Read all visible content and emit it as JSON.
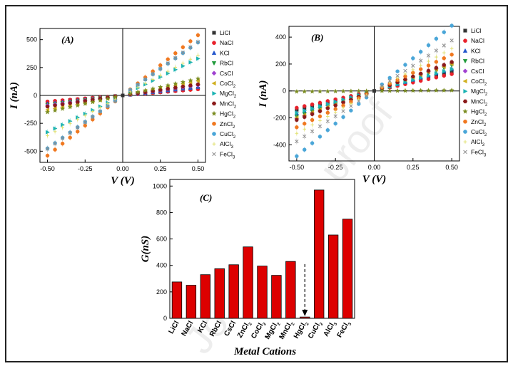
{
  "watermark": "Journal Pre-proof",
  "chart_data": [
    {
      "type": "scatter",
      "panel_label": "(A)",
      "xlabel": "V (V)",
      "ylabel": "I (nA)",
      "xlim": [
        -0.55,
        0.55
      ],
      "ylim": [
        -600,
        600
      ],
      "xticks": [
        "-0.50",
        "-0.25",
        "0.00",
        "0.25",
        "0.50"
      ],
      "xtick_values": [
        -0.5,
        -0.25,
        0,
        0.25,
        0.5
      ],
      "yticks": [
        "-500",
        "-250",
        "0",
        "250",
        "500"
      ],
      "ytick_values": [
        -500,
        -250,
        0,
        250,
        500
      ],
      "x_points": [
        -0.5,
        -0.45,
        -0.4,
        -0.35,
        -0.3,
        -0.25,
        -0.2,
        -0.15,
        -0.1,
        -0.05,
        0,
        0.05,
        0.1,
        0.15,
        0.2,
        0.25,
        0.3,
        0.35,
        0.4,
        0.45,
        0.5
      ],
      "legend_position": "right",
      "series": [
        {
          "name": "LiCl",
          "sub": "",
          "slope": 120,
          "color": "#333333",
          "marker": "square"
        },
        {
          "name": "NaCl",
          "sub": "",
          "slope": 110,
          "color": "#e8212b",
          "marker": "circle"
        },
        {
          "name": "KCl",
          "sub": "",
          "slope": 150,
          "color": "#2255cc",
          "marker": "triangle-up"
        },
        {
          "name": "RbCl",
          "sub": "",
          "slope": 170,
          "color": "#1f9a3a",
          "marker": "triangle-down"
        },
        {
          "name": "CsCl",
          "sub": "",
          "slope": 180,
          "color": "#a040d0",
          "marker": "diamond"
        },
        {
          "name": "CoCl",
          "sub": "2",
          "slope": 260,
          "color": "#d0b020",
          "marker": "triangle-left"
        },
        {
          "name": "MgCl",
          "sub": "2",
          "slope": 660,
          "color": "#1ab3b3",
          "marker": "triangle-right"
        },
        {
          "name": "MnCl",
          "sub": "2",
          "slope": 200,
          "color": "#8b1a1a",
          "marker": "hexagon"
        },
        {
          "name": "HgCl",
          "sub": "2",
          "slope": 300,
          "color": "#7a8c20",
          "marker": "star"
        },
        {
          "name": "ZnCl",
          "sub": "2",
          "slope": 1080,
          "color": "#f07820",
          "marker": "circle"
        },
        {
          "name": "CuCl",
          "sub": "2",
          "slope": 950,
          "color": "#4aa6d8",
          "marker": "circle"
        },
        {
          "name": "AlCl",
          "sub": "3",
          "slope": 720,
          "color": "#e0e070",
          "marker": "plus"
        },
        {
          "name": "FeCl",
          "sub": "3",
          "slope": 960,
          "color": "#8d8d8d",
          "marker": "cross"
        }
      ]
    },
    {
      "type": "scatter",
      "panel_label": "(B)",
      "xlabel": "V (V)",
      "ylabel": "I (nA)",
      "xlim": [
        -0.55,
        0.55
      ],
      "ylim": [
        -520,
        480
      ],
      "xticks": [
        "-0.50",
        "-0.25",
        "0.00",
        "0.25",
        "0.50"
      ],
      "xtick_values": [
        -0.5,
        -0.25,
        0,
        0.25,
        0.5
      ],
      "yticks": [
        "-400",
        "-200",
        "0",
        "200",
        "400"
      ],
      "ytick_values": [
        -400,
        -200,
        0,
        200,
        400
      ],
      "x_points": [
        -0.5,
        -0.45,
        -0.4,
        -0.35,
        -0.3,
        -0.25,
        -0.2,
        -0.15,
        -0.1,
        -0.05,
        0,
        0.05,
        0.1,
        0.15,
        0.2,
        0.25,
        0.3,
        0.35,
        0.4,
        0.45,
        0.5
      ],
      "legend_position": "right",
      "series": [
        {
          "name": "LiCl",
          "sub": "",
          "slope": 280,
          "color": "#333333",
          "marker": "square"
        },
        {
          "name": "NaCl",
          "sub": "",
          "slope": 250,
          "color": "#e8212b",
          "marker": "circle"
        },
        {
          "name": "KCl",
          "sub": "",
          "slope": 330,
          "color": "#2255cc",
          "marker": "triangle-up"
        },
        {
          "name": "RbCl",
          "sub": "",
          "slope": 380,
          "color": "#1f9a3a",
          "marker": "triangle-down"
        },
        {
          "name": "CsCl",
          "sub": "",
          "slope": 410,
          "color": "#a040d0",
          "marker": "diamond"
        },
        {
          "name": "CoCl",
          "sub": "2",
          "slope": 400,
          "color": "#d0b020",
          "marker": "triangle-left"
        },
        {
          "name": "MgCl",
          "sub": "2",
          "slope": 325,
          "color": "#1ab3b3",
          "marker": "triangle-right"
        },
        {
          "name": "MnCl",
          "sub": "2",
          "slope": 430,
          "color": "#8b1a1a",
          "marker": "hexagon"
        },
        {
          "name": "HgCl",
          "sub": "2",
          "slope": 10,
          "color": "#7a8c20",
          "marker": "star"
        },
        {
          "name": "ZnCl",
          "sub": "2",
          "slope": 540,
          "color": "#f07820",
          "marker": "circle"
        },
        {
          "name": "CuCl",
          "sub": "2",
          "slope": 970,
          "color": "#4aa6d8",
          "marker": "circle"
        },
        {
          "name": "AlCl",
          "sub": "3",
          "slope": 630,
          "color": "#e0e070",
          "marker": "plus"
        },
        {
          "name": "FeCl",
          "sub": "3",
          "slope": 750,
          "color": "#8d8d8d",
          "marker": "cross"
        }
      ]
    },
    {
      "type": "bar",
      "panel_label": "(C)",
      "xlabel": "Metal Cations",
      "ylabel": "G(nS)",
      "ylim": [
        0,
        1050
      ],
      "yticks": [
        "0",
        "200",
        "400",
        "600",
        "800",
        "1000"
      ],
      "ytick_values": [
        0,
        200,
        400,
        600,
        800,
        1000
      ],
      "bar_color": "#dd0000",
      "categories": [
        {
          "name": "LiCl",
          "sub": ""
        },
        {
          "name": "NaCl",
          "sub": ""
        },
        {
          "name": "KCl",
          "sub": ""
        },
        {
          "name": "RbCl",
          "sub": ""
        },
        {
          "name": "CsCl",
          "sub": ""
        },
        {
          "name": "ZnCl",
          "sub": "2"
        },
        {
          "name": "CoCl",
          "sub": "2"
        },
        {
          "name": "MgCl",
          "sub": "2"
        },
        {
          "name": "MnCl",
          "sub": "2"
        },
        {
          "name": "HgCl",
          "sub": "2"
        },
        {
          "name": "CuCl",
          "sub": "2"
        },
        {
          "name": "AlCl",
          "sub": "3"
        },
        {
          "name": "FeCl",
          "sub": "3"
        }
      ],
      "values": [
        275,
        250,
        330,
        375,
        405,
        540,
        395,
        325,
        430,
        10,
        970,
        630,
        750
      ],
      "annotation": "dashed arrow pointing to HgCl2 bar"
    }
  ]
}
